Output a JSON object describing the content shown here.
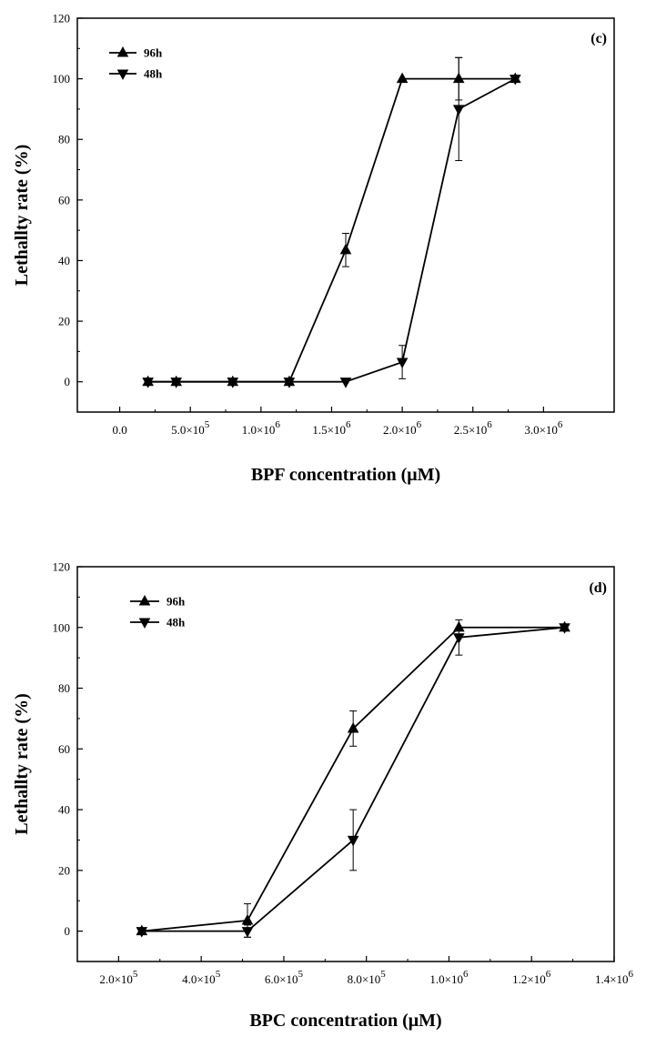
{
  "chart_data": [
    {
      "panel": "(c)",
      "type": "line",
      "xlabel": "BPF concentration (μM)",
      "ylabel": "Lethallty rate (%)",
      "xlim": [
        -300000,
        3500000
      ],
      "ylim": [
        -10,
        120
      ],
      "yticks": [
        0,
        20,
        40,
        60,
        80,
        100,
        120
      ],
      "xticks": [
        {
          "v": 0,
          "m": "0.0",
          "e": ""
        },
        {
          "v": 500000,
          "m": "5.0×10",
          "e": "5"
        },
        {
          "v": 1000000,
          "m": "1.0×10",
          "e": "6"
        },
        {
          "v": 1500000,
          "m": "1.5×10",
          "e": "6"
        },
        {
          "v": 2000000,
          "m": "2.0×10",
          "e": "6"
        },
        {
          "v": 2500000,
          "m": "2.5×10",
          "e": "6"
        },
        {
          "v": 3000000,
          "m": "3.0×10",
          "e": "6"
        }
      ],
      "series": [
        {
          "name": "96h",
          "marker": "triangle-up",
          "x": [
            200000,
            400000,
            800000,
            1200000,
            1600000,
            2000000,
            2400000,
            2800000
          ],
          "y": [
            0,
            0,
            0,
            0,
            43.5,
            100,
            100,
            100
          ],
          "err": [
            0,
            0,
            0,
            0,
            5.5,
            0,
            7,
            0
          ]
        },
        {
          "name": "48h",
          "marker": "triangle-down",
          "x": [
            200000,
            400000,
            800000,
            1200000,
            1600000,
            2000000,
            2400000,
            2800000
          ],
          "y": [
            0,
            0,
            0,
            0,
            0,
            6.5,
            90,
            100
          ],
          "err": [
            0,
            0,
            0,
            0,
            0,
            5.5,
            17,
            0
          ]
        }
      ],
      "legend": "top-left"
    },
    {
      "panel": "(d)",
      "type": "line",
      "xlabel": "BPC concentration (μM)",
      "ylabel": "Lethallty rate (%)",
      "xlim": [
        100000,
        1400000
      ],
      "ylim": [
        -10,
        120
      ],
      "yticks": [
        0,
        20,
        40,
        60,
        80,
        100,
        120
      ],
      "xticks": [
        {
          "v": 200000,
          "m": "2.0×10",
          "e": "5"
        },
        {
          "v": 400000,
          "m": "4.0×10",
          "e": "5"
        },
        {
          "v": 600000,
          "m": "6.0×10",
          "e": "5"
        },
        {
          "v": 800000,
          "m": "8.0×10",
          "e": "5"
        },
        {
          "v": 1000000,
          "m": "1.0×10",
          "e": "6"
        },
        {
          "v": 1200000,
          "m": "1.2×10",
          "e": "6"
        },
        {
          "v": 1400000,
          "m": "1.4×10",
          "e": "6"
        }
      ],
      "series": [
        {
          "name": "96h",
          "marker": "triangle-up",
          "x": [
            256000,
            512000,
            768000,
            1024000,
            1280000
          ],
          "y": [
            0,
            3.5,
            66.7,
            100,
            100
          ],
          "err": [
            0,
            5.5,
            5.8,
            0,
            0
          ]
        },
        {
          "name": "48h",
          "marker": "triangle-down",
          "x": [
            256000,
            512000,
            768000,
            1024000,
            1280000
          ],
          "y": [
            0,
            0,
            30,
            96.7,
            100
          ],
          "err": [
            0,
            2,
            10,
            5.8,
            0
          ]
        }
      ],
      "legend": "top-left"
    }
  ]
}
